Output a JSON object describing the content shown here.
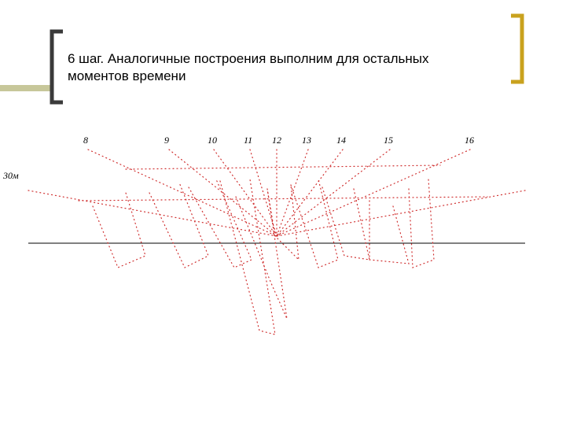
{
  "slide": {
    "title_lines": [
      "6 шаг. Аналогичные построения выполним для остальных",
      "моментов времени"
    ],
    "diagram": {
      "hour_labels": [
        "8",
        "9",
        "10",
        "11",
        "12",
        "13",
        "14",
        "15",
        "16"
      ],
      "height_label": "30м"
    }
  }
}
